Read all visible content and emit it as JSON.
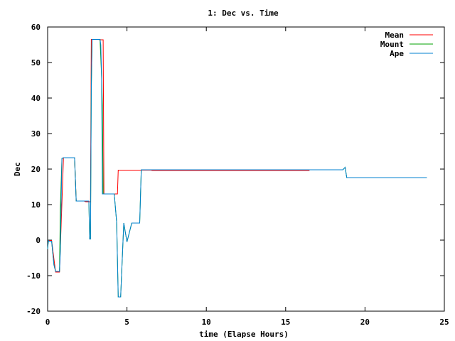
{
  "chart_data": {
    "type": "line",
    "title": "1: Dec vs. Time",
    "xlabel": "time (Elapse Hours)",
    "ylabel": "Dec",
    "xlim": [
      0,
      25
    ],
    "ylim": [
      -20,
      60
    ],
    "xticks": [
      0,
      5,
      10,
      15,
      20,
      25
    ],
    "yticks": [
      -20,
      -10,
      0,
      10,
      20,
      30,
      40,
      50,
      60
    ],
    "grid": false,
    "legend_position": "top-right",
    "series": [
      {
        "name": "Mean",
        "color": "#ff0000",
        "x": [
          0.05,
          0.25,
          0.5,
          0.75,
          1.0,
          1.7,
          1.8,
          2.3,
          2.4,
          2.7,
          2.75,
          3.2,
          3.3,
          3.5,
          3.55,
          4.4,
          4.45,
          6.5,
          6.6,
          16.5
        ],
        "y": [
          -0.1,
          -0.1,
          -9.0,
          -9.0,
          23.2,
          23.2,
          11.0,
          11.0,
          10.8,
          10.8,
          56.5,
          56.5,
          56.4,
          56.4,
          13.0,
          13.0,
          19.7,
          19.7,
          19.6,
          19.6
        ]
      },
      {
        "name": "Mount",
        "color": "#00a000",
        "x": [
          0.0,
          0.05,
          0.1,
          0.25,
          0.4,
          0.5,
          0.75,
          0.8,
          0.9,
          1.0,
          1.7,
          1.8,
          2.6,
          2.65,
          2.7,
          2.75,
          2.8,
          3.3,
          3.4,
          3.45,
          3.5,
          3.55,
          4.2,
          4.35,
          4.45,
          4.6,
          4.8,
          5.0,
          5.3,
          5.8,
          5.9,
          18.6,
          18.75,
          18.85,
          23.9
        ],
        "y": [
          -2.5,
          -0.1,
          -0.3,
          -0.3,
          -7.0,
          -8.8,
          -8.8,
          9.0,
          23.0,
          23.2,
          23.2,
          11.0,
          11.0,
          0.3,
          0.3,
          42.0,
          56.5,
          56.5,
          46.0,
          38.0,
          13.0,
          13.0,
          13.0,
          5.0,
          -16.0,
          -16.0,
          4.8,
          -0.5,
          4.8,
          4.8,
          19.8,
          19.8,
          20.5,
          17.6,
          17.6
        ]
      },
      {
        "name": "Ape",
        "color": "#0080d0",
        "x": [
          0.0,
          0.05,
          0.1,
          0.25,
          0.4,
          0.5,
          0.75,
          0.8,
          0.9,
          1.0,
          1.7,
          1.8,
          2.6,
          2.65,
          2.7,
          2.75,
          2.8,
          3.3,
          3.35,
          3.4,
          3.45,
          3.5,
          3.55,
          4.2,
          4.35,
          4.45,
          4.6,
          4.8,
          5.0,
          5.3,
          5.8,
          5.9,
          18.6,
          18.75,
          18.85,
          23.9
        ],
        "y": [
          -2.5,
          -0.1,
          -0.3,
          -0.3,
          -7.0,
          -8.8,
          -8.8,
          -3.0,
          23.0,
          23.2,
          23.2,
          11.0,
          11.0,
          0.3,
          0.3,
          42.0,
          56.5,
          56.5,
          55.0,
          46.0,
          13.0,
          13.0,
          13.0,
          13.0,
          5.0,
          -16.0,
          -16.0,
          4.8,
          -0.5,
          4.8,
          4.8,
          19.8,
          19.8,
          20.5,
          17.6,
          17.6
        ]
      }
    ]
  }
}
